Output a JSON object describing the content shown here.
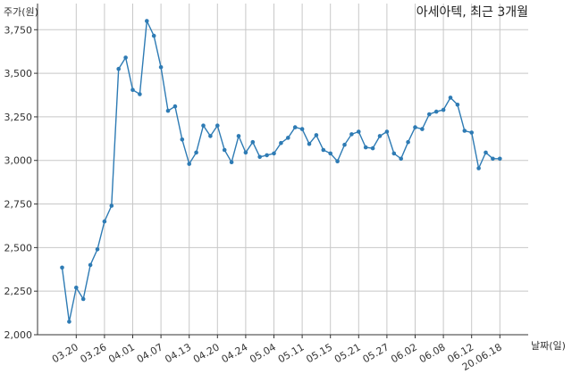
{
  "chart_data": {
    "type": "line",
    "title": "아세아텍, 최근 3개월",
    "xlabel": "날짜(일)",
    "ylabel": "주가(원)",
    "ylim": [
      2000,
      3900
    ],
    "yticks": [
      2000,
      2250,
      2500,
      2750,
      3000,
      3250,
      3500,
      3750
    ],
    "ytick_labels": [
      "2,000",
      "2,250",
      "2,500",
      "2,750",
      "3,000",
      "3,250",
      "3,500",
      "3,750"
    ],
    "xtick_labels": [
      "03.20",
      "03.26",
      "04.01",
      "04.07",
      "04.13",
      "04.20",
      "04.24",
      "05.04",
      "05.11",
      "05.15",
      "05.21",
      "05.27",
      "06.02",
      "06.08",
      "06.12",
      "20.06.18"
    ],
    "xtick_index": [
      2,
      6,
      10,
      14,
      18,
      22,
      26,
      30,
      34,
      38,
      42,
      46,
      50,
      54,
      58,
      62
    ],
    "grid": true,
    "line_color": "#2e7bb4",
    "series": [
      {
        "values": [
          2385,
          2075,
          2270,
          2205,
          2400,
          2490,
          2650,
          2740,
          3525,
          3590,
          3405,
          3380,
          3800,
          3715,
          3535,
          3285,
          3310,
          3120,
          2980,
          3045,
          3200,
          3140,
          3200,
          3060,
          2990,
          3140,
          3045,
          3105,
          3020,
          3030,
          3040,
          3100,
          3130,
          3190,
          3180,
          3095,
          3145,
          3060,
          3040,
          2995,
          3090,
          3150,
          3165,
          3075,
          3070,
          3140,
          3165,
          3040,
          3010,
          3105,
          3190,
          3180,
          3265,
          3280,
          3290,
          3360,
          3320,
          3170,
          3160,
          2955,
          3045,
          3010,
          3010
        ]
      }
    ]
  }
}
